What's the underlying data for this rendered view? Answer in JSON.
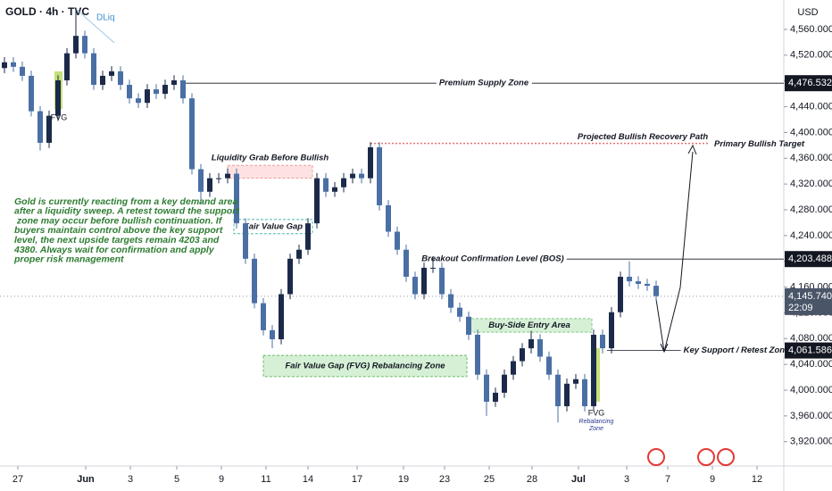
{
  "chart_data": {
    "type": "candlestick",
    "title": "GOLD · 4h · TVC",
    "y_axis_label": "USD",
    "up_color": "#1c2a4a",
    "down_color": "#4a6fa5",
    "xlim": [
      -0.5,
      87.3
    ],
    "ylim": [
      3885,
      4605.7
    ],
    "yticks": [
      {
        "value": 4560,
        "label": "4,560.000"
      },
      {
        "value": 4520,
        "label": "4,520.000"
      },
      {
        "value": 4480,
        "label": "4,480.000"
      },
      {
        "value": 4440,
        "label": "4,440.000"
      },
      {
        "value": 4400,
        "label": "4,400.000"
      },
      {
        "value": 4360,
        "label": "4,360.000"
      },
      {
        "value": 4320,
        "label": "4,320.000"
      },
      {
        "value": 4280,
        "label": "4,280.000"
      },
      {
        "value": 4240,
        "label": "4,240.000"
      },
      {
        "value": 4200,
        "label": "4,200.000"
      },
      {
        "value": 4160,
        "label": "4,160.000"
      },
      {
        "value": 4120,
        "label": "4,120.000"
      },
      {
        "value": 4080,
        "label": "4,080.000"
      },
      {
        "value": 4040,
        "label": "4,040.000"
      },
      {
        "value": 4000,
        "label": "4,000.000"
      },
      {
        "value": 3960,
        "label": "3,960.000"
      },
      {
        "value": 3920,
        "label": "3,920.000"
      }
    ],
    "xticks": [
      {
        "value": 1.5,
        "label": "27"
      },
      {
        "value": 9.1,
        "label": "Jun"
      },
      {
        "value": 14.1,
        "label": "3"
      },
      {
        "value": 19.3,
        "label": "5"
      },
      {
        "value": 24.3,
        "label": "9"
      },
      {
        "value": 29.3,
        "label": "11"
      },
      {
        "value": 34,
        "label": "14"
      },
      {
        "value": 39.5,
        "label": "17"
      },
      {
        "value": 44.7,
        "label": "19"
      },
      {
        "value": 49.3,
        "label": "23"
      },
      {
        "value": 54.3,
        "label": "25"
      },
      {
        "value": 59.1,
        "label": "28"
      },
      {
        "value": 64.3,
        "label": "Jul"
      },
      {
        "value": 69.7,
        "label": "3"
      },
      {
        "value": 74.3,
        "label": "7"
      },
      {
        "value": 79.3,
        "label": "9"
      },
      {
        "value": 84.3,
        "label": "12"
      }
    ],
    "open": [
      4500,
      4509,
      4502,
      4488,
      4433,
      4384,
      4426,
      4481,
      4523,
      4550,
      4523,
      4474,
      4488,
      4495,
      4474,
      4453,
      4446,
      4467,
      4460,
      4474,
      4481,
      4453,
      4343,
      4308,
      4329,
      4329,
      4336,
      4259,
      4204,
      4135,
      4093,
      4079,
      4149,
      4204,
      4218,
      4259,
      4329,
      4308,
      4315,
      4329,
      4336,
      4329,
      4377,
      4287,
      4246,
      4218,
      4176,
      4149,
      4190,
      4190,
      4149,
      4128,
      4114,
      4086,
      4024,
      3982,
      3996,
      4024,
      4045,
      4065,
      4079,
      4052,
      4024,
      3975,
      4010,
      4017,
      3975,
      4086,
      4065,
      4121,
      4176,
      4169,
      4165,
      4162
    ],
    "high": [
      4517,
      4517,
      4510,
      4496,
      4441,
      4434,
      4489,
      4531,
      4592,
      4558,
      4531,
      4496,
      4503,
      4503,
      4482,
      4461,
      4475,
      4475,
      4482,
      4489,
      4489,
      4461,
      4351,
      4337,
      4337,
      4344,
      4344,
      4267,
      4212,
      4143,
      4101,
      4157,
      4212,
      4226,
      4267,
      4337,
      4337,
      4323,
      4337,
      4344,
      4344,
      4385,
      4385,
      4295,
      4254,
      4226,
      4184,
      4198,
      4208,
      4198,
      4157,
      4136,
      4122,
      4094,
      4032,
      4004,
      4032,
      4053,
      4073,
      4092,
      4087,
      4060,
      4032,
      4018,
      4025,
      4025,
      4094,
      4094,
      4129,
      4184,
      4200,
      4177,
      4173,
      4170
    ],
    "low": [
      4492,
      4494,
      4480,
      4425,
      4372,
      4376,
      4418,
      4473,
      4515,
      4515,
      4466,
      4466,
      4480,
      4466,
      4445,
      4438,
      4438,
      4452,
      4452,
      4466,
      4445,
      4335,
      4290,
      4300,
      4321,
      4321,
      4251,
      4196,
      4127,
      4085,
      4065,
      4071,
      4141,
      4196,
      4210,
      4251,
      4300,
      4300,
      4307,
      4321,
      4321,
      4321,
      4279,
      4238,
      4210,
      4168,
      4141,
      4141,
      4182,
      4141,
      4120,
      4106,
      4078,
      4016,
      3960,
      3974,
      3988,
      4016,
      4037,
      4057,
      4044,
      4016,
      3950,
      3967,
      4002,
      3967,
      3967,
      4057,
      4057,
      4113,
      4161,
      4157,
      4154,
      4138
    ],
    "close": [
      4509,
      4502,
      4488,
      4433,
      4384,
      4426,
      4481,
      4523,
      4550,
      4523,
      4474,
      4488,
      4495,
      4474,
      4453,
      4446,
      4467,
      4460,
      4474,
      4481,
      4453,
      4343,
      4308,
      4329,
      4329,
      4336,
      4259,
      4204,
      4135,
      4093,
      4079,
      4149,
      4204,
      4218,
      4259,
      4329,
      4308,
      4315,
      4329,
      4336,
      4329,
      4377,
      4287,
      4246,
      4218,
      4176,
      4149,
      4190,
      4190,
      4149,
      4128,
      4114,
      4086,
      4024,
      3982,
      3996,
      4024,
      4045,
      4065,
      4079,
      4052,
      4024,
      3975,
      4010,
      4017,
      3975,
      4086,
      4065,
      4121,
      4176,
      4169,
      4165,
      4162,
      4146
    ],
    "levels": [
      {
        "name": "Premium Supply Zone",
        "value": 4476.532,
        "label": "4,476.532"
      },
      {
        "name": "Breakout Confirmation Level (BOS)",
        "value": 4203.488,
        "label": "4,203.488"
      },
      {
        "name": "Key Support / Retest Zone",
        "value": 4061.586,
        "label": "4,061.586"
      }
    ],
    "projected_level": {
      "name": "Projected Bullish Recovery Path",
      "target": "Primary Bullish Target",
      "value": 4383
    },
    "last_price": {
      "value": 4145.74,
      "label": "4,145.740",
      "countdown": "22:09"
    },
    "zones": [
      {
        "name": "Liquidity Grab Before Bullish",
        "ylim": [
          4329,
          4349
        ]
      },
      {
        "name": "Fair Value Gap",
        "ylim": [
          4243,
          4265
        ]
      },
      {
        "name": "Buy-Side Entry Area",
        "ylim": [
          4090,
          4111
        ]
      },
      {
        "name": "Fair Value Gap (FVG) Rebalancing Zone",
        "ylim": [
          4021,
          4054
        ]
      }
    ],
    "fvg_labels": [
      "FVG",
      "FVG"
    ],
    "rebalancing_label": [
      "Rebalancing",
      "Zone"
    ],
    "dliq_label": "DLiq",
    "note": [
      "Gold is currently reacting from a key demand area",
      "after a liquidity sweep. A retest toward the support",
      " zone may occur before bullish continuation. If",
      "buyers maintain control above the key support",
      "level, the next upside targets remain 4203 and",
      "4380. Always wait for confirmation and apply",
      "proper risk management"
    ]
  }
}
